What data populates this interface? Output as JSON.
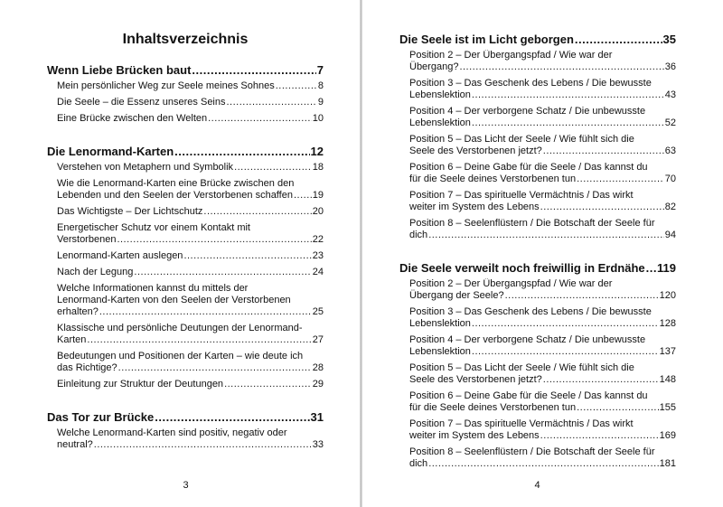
{
  "left_page": {
    "title": "Inhaltsverzeichnis",
    "page_number": "3",
    "sections": [
      {
        "title": "Wenn Liebe Brücken baut",
        "page": "7",
        "entries": [
          {
            "title": "Mein persönlicher Weg zur Seele meines Sohnes",
            "page": "8"
          },
          {
            "title": "Die Seele – die Essenz unseres Seins",
            "page": "9"
          },
          {
            "title": "Eine Brücke zwischen den Welten",
            "page": "10"
          }
        ]
      },
      {
        "title": "Die Lenormand-Karten",
        "page": "12",
        "entries": [
          {
            "title": "Verstehen von Metaphern und Symbolik",
            "page": "18"
          },
          {
            "title": "Wie die Lenormand-Karten eine Brücke zwischen den Lebenden und den Seelen der Verstorbenen schaffen",
            "page": "19"
          },
          {
            "title": "Das Wichtigste – Der Lichtschutz",
            "page": "20"
          },
          {
            "title": "Energetischer Schutz vor einem Kontakt mit Verstorbenen",
            "page": "22"
          },
          {
            "title": "Lenormand-Karten auslegen",
            "page": "23"
          },
          {
            "title": "Nach der Legung",
            "page": "24"
          },
          {
            "title": "Welche Informationen kannst du mittels der Lenormand-Karten von den Seelen der Verstorbenen erhalten?",
            "page": "25"
          },
          {
            "title": "Klassische und persönliche Deutungen der Lenormand-Karten",
            "page": "27"
          },
          {
            "title": "Bedeutungen und Positionen der Karten – wie deute ich das Richtige?",
            "page": "28"
          },
          {
            "title": "Einleitung zur Struktur der Deutungen",
            "page": "29"
          }
        ]
      },
      {
        "title": "Das Tor zur Brücke",
        "page": "31",
        "entries": [
          {
            "title": "Welche Lenormand-Karten sind positiv, negativ oder neutral?",
            "page": "33"
          }
        ]
      }
    ]
  },
  "right_page": {
    "page_number": "4",
    "sections": [
      {
        "title": "Die Seele ist im Licht geborgen",
        "page": "35",
        "entries": [
          {
            "title": "Position 2 – Der Übergangspfad / Wie war der Übergang?",
            "page": "36"
          },
          {
            "title": "Position 3 – Das Geschenk des Lebens / Die bewusste Lebenslektion",
            "page": "43"
          },
          {
            "title": "Position 4 – Der verborgene Schatz / Die unbewusste Lebenslektion",
            "page": "52"
          },
          {
            "title": "Position 5 – Das Licht der Seele / Wie fühlt sich die Seele des Verstorbenen jetzt?",
            "page": "63"
          },
          {
            "title": "Position 6 – Deine Gabe für die Seele / Das kannst du für die Seele deines Verstorbenen tun",
            "page": "70"
          },
          {
            "title": "Position 7 – Das spirituelle Vermächtnis / Das wirkt weiter im System des Lebens",
            "page": "82"
          },
          {
            "title": "Position 8 – Seelenflüstern / Die Botschaft der Seele für dich",
            "page": "94"
          }
        ]
      },
      {
        "title": "Die Seele verweilt noch freiwillig in Erdnähe",
        "page": "119",
        "entries": [
          {
            "title": "Position 2 – Der Übergangspfad / Wie war der Übergang der Seele?",
            "page": "120"
          },
          {
            "title": "Position 3 – Das Geschenk des Lebens / Die bewusste Lebenslektion",
            "page": "128"
          },
          {
            "title": "Position 4 – Der verborgene Schatz / Die unbewusste Lebenslektion",
            "page": "137"
          },
          {
            "title": "Position 5 – Das Licht der Seele / Wie fühlt sich die Seele des Verstorbenen jetzt?",
            "page": "148"
          },
          {
            "title": "Position 6 – Deine Gabe für die Seele / Das kannst du für die Seele deines Verstorbenen tun",
            "page": "155"
          },
          {
            "title": "Position 7 – Das spirituelle Vermächtnis / Das wirkt weiter im System des Lebens",
            "page": "169"
          },
          {
            "title": "Position 8 – Seelenflüstern / Die Botschaft der Seele für dich",
            "page": "181"
          }
        ]
      }
    ]
  }
}
